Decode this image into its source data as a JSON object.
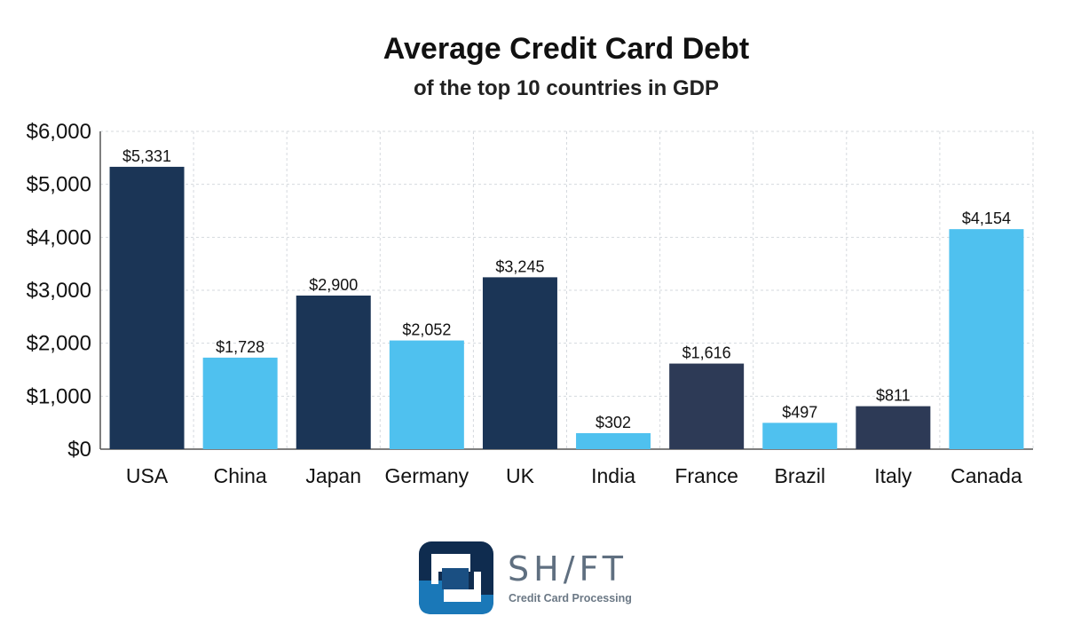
{
  "chart_data": {
    "type": "bar",
    "title": "Average Credit Card Debt",
    "subtitle": "of the top 10 countries in GDP",
    "categories": [
      "USA",
      "China",
      "Japan",
      "Germany",
      "UK",
      "India",
      "France",
      "Brazil",
      "Italy",
      "Canada"
    ],
    "values": [
      5331,
      1728,
      2900,
      2052,
      3245,
      302,
      1616,
      497,
      811,
      4154
    ],
    "data_labels": [
      "$5,331",
      "$1,728",
      "$2,900",
      "$2,052",
      "$3,245",
      "$302",
      "$1,616",
      "$497",
      "$811",
      "$4,154"
    ],
    "bar_colors": [
      "#1b3556",
      "#4fc1ef",
      "#1b3556",
      "#4fc1ef",
      "#1b3556",
      "#4fc1ef",
      "#2d3a56",
      "#4fc1ef",
      "#2d3a56",
      "#4fc1ef"
    ],
    "ylim": [
      0,
      6000
    ],
    "yticks": [
      0,
      1000,
      2000,
      3000,
      4000,
      5000,
      6000
    ],
    "ytick_labels": [
      "$0",
      "$1,000",
      "$2,000",
      "$3,000",
      "$4,000",
      "$5,000",
      "$6,000"
    ],
    "xlabel": "",
    "ylabel": "",
    "grid": true,
    "legend": "none"
  },
  "brand": {
    "name": "SH/FT",
    "tagline": "Credit Card Processing",
    "colors": {
      "dark": "#0f2c4f",
      "light": "#1a78b8",
      "text": "#5f6f80"
    }
  }
}
